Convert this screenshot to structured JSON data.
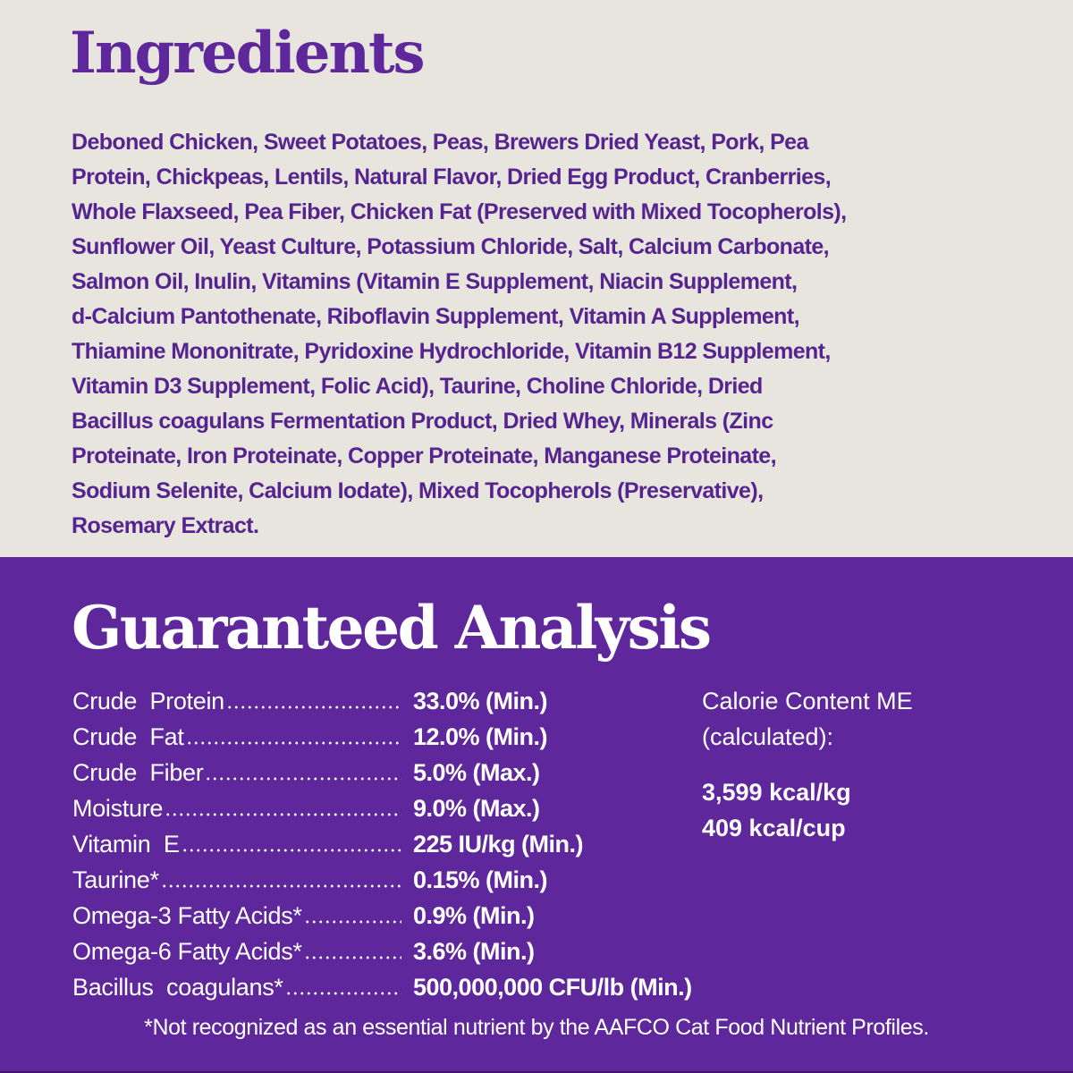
{
  "colors": {
    "background": "#e8e5de",
    "purple": "#5e279b",
    "text_purple": "#55248f",
    "white": "#ffffff"
  },
  "ingredients": {
    "title": "Ingredients",
    "lines": [
      "Deboned Chicken, Sweet Potatoes, Peas, Brewers Dried Yeast, Pork, Pea",
      "Protein, Chickpeas, Lentils, Natural Flavor, Dried Egg Product, Cranberries,",
      "Whole Flaxseed, Pea Fiber, Chicken Fat (Preserved with Mixed Tocopherols),",
      "Sunflower Oil, Yeast Culture, Potassium Chloride, Salt, Calcium Carbonate,",
      "Salmon Oil, Inulin, Vitamins (Vitamin E Supplement, Niacin Supplement,",
      "d-Calcium Pantothenate, Riboflavin Supplement, Vitamin A Supplement,",
      "Thiamine Mononitrate, Pyridoxine Hydrochloride, Vitamin B12 Supplement,",
      "Vitamin D3 Supplement, Folic Acid), Taurine, Choline Chloride, Dried",
      "Bacillus coagulans Fermentation Product, Dried Whey, Minerals (Zinc",
      "Proteinate, Iron Proteinate, Copper Proteinate, Manganese Proteinate,",
      "Sodium Selenite, Calcium Iodate), Mixed Tocopherols (Preservative),",
      "Rosemary Extract."
    ]
  },
  "analysis": {
    "title": "Guaranteed Analysis",
    "rows": [
      {
        "label": "Crude  Protein",
        "value": "33.0% (Min.)"
      },
      {
        "label": "Crude  Fat",
        "value": "12.0% (Min.)"
      },
      {
        "label": "Crude  Fiber",
        "value": "5.0% (Max.)"
      },
      {
        "label": "Moisture",
        "value": "9.0% (Max.)"
      },
      {
        "label": "Vitamin  E",
        "value": "225 IU/kg (Min.)"
      },
      {
        "label": "Taurine*",
        "value": "0.15% (Min.)"
      },
      {
        "label": "Omega-3 Fatty Acids*",
        "value": "0.9% (Min.)"
      },
      {
        "label": "Omega-6 Fatty Acids*",
        "value": "3.6% (Min.)"
      },
      {
        "label": "Bacillus  coagulans*",
        "value": "500,000,000 CFU/lb (Min.)"
      }
    ],
    "calorie": {
      "label_line1": "Calorie Content ME",
      "label_line2": "(calculated):",
      "kcal_kg": "3,599 kcal/kg",
      "kcal_cup": "409 kcal/cup"
    },
    "footnote": "*Not recognized as an essential nutrient by the AAFCO Cat Food Nutrient Profiles."
  }
}
